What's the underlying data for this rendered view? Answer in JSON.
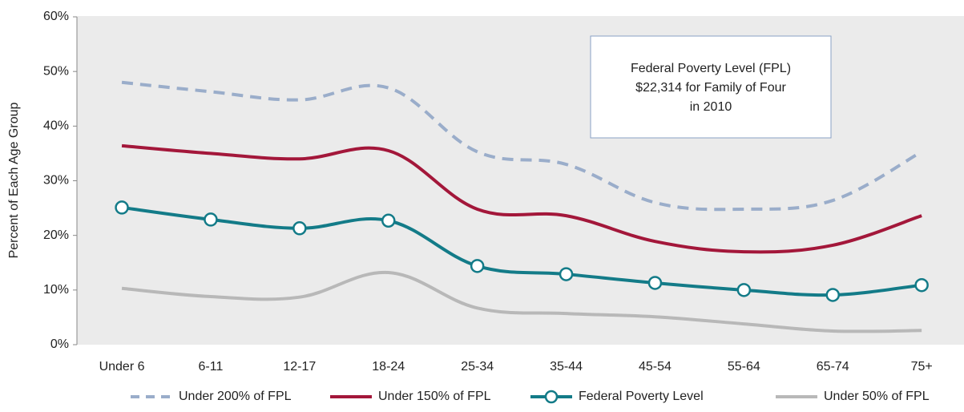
{
  "chart_data": {
    "type": "line",
    "y_label": "Percent of Each Age Group",
    "annotation": [
      "Federal Poverty Level (FPL)",
      "$22,314 for Family of Four",
      "in 2010"
    ],
    "categories": [
      "Under 6",
      "6-11",
      "12-17",
      "18-24",
      "25-34",
      "35-44",
      "45-54",
      "55-64",
      "65-74",
      "75+"
    ],
    "series": [
      {
        "name": "Under 200% of FPL",
        "color": "#9aadca",
        "dashed": true,
        "markers": false,
        "values": [
          48,
          46.3,
          44.8,
          47,
          35.3,
          33,
          26,
          24.8,
          26.4,
          35.3
        ]
      },
      {
        "name": "Under 150% of FPL",
        "color": "#a3173a",
        "dashed": false,
        "markers": false,
        "values": [
          36.4,
          35,
          34,
          35.5,
          24.8,
          23.6,
          18.9,
          17,
          18.2,
          23.6
        ]
      },
      {
        "name": "Federal Poverty Level",
        "color": "#137b88",
        "dashed": false,
        "markers": true,
        "values": [
          25.1,
          22.9,
          21.3,
          22.7,
          14.4,
          12.9,
          11.3,
          10,
          9.1,
          10.9
        ]
      },
      {
        "name": "Under 50% of FPL",
        "color": "#b8b8b8",
        "dashed": false,
        "markers": false,
        "values": [
          10.3,
          8.8,
          8.7,
          13.2,
          6.7,
          5.7,
          5.1,
          3.8,
          2.5,
          2.6
        ]
      }
    ],
    "ylim": [
      0,
      60
    ],
    "yticks": [
      {
        "value": 0,
        "label": "0%"
      },
      {
        "value": 10,
        "label": "10%"
      },
      {
        "value": 20,
        "label": "20%"
      },
      {
        "value": 30,
        "label": "30%"
      },
      {
        "value": 40,
        "label": "40%"
      },
      {
        "value": 50,
        "label": "50%"
      },
      {
        "value": 60,
        "label": "60%"
      }
    ],
    "grid": false
  }
}
